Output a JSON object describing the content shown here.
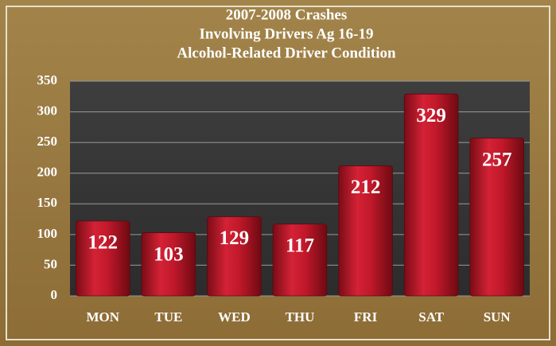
{
  "chart_data": {
    "type": "bar",
    "title": [
      "2007-2008 Crashes",
      "Involving Drivers Ag 16-19",
      "Alcohol-Related Driver Condition"
    ],
    "categories": [
      "MON",
      "TUE",
      "WED",
      "THU",
      "FRI",
      "SAT",
      "SUN"
    ],
    "values": [
      122,
      103,
      129,
      117,
      212,
      329,
      257
    ],
    "color": "#c0182a",
    "ylim": [
      0,
      350
    ],
    "yticks": [
      0,
      50,
      100,
      150,
      200,
      250,
      300,
      350
    ],
    "grid": true
  }
}
